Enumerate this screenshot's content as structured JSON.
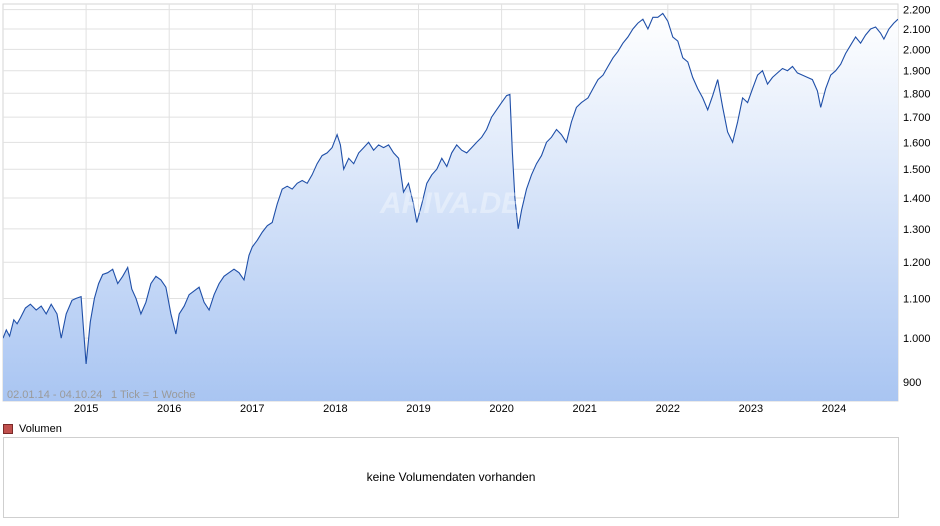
{
  "chart_data": {
    "type": "area",
    "date_range_label": "02.01.14 - 04.10.24",
    "tick_info": "1 Tick = 1 Woche",
    "watermark": "ARIVA.DE",
    "x_tick_labels": [
      "2015",
      "2016",
      "2017",
      "2018",
      "2019",
      "2020",
      "2021",
      "2022",
      "2023",
      "2024"
    ],
    "y_tick_labels": [
      "900",
      "1.000",
      "1.100",
      "1.200",
      "1.300",
      "1.400",
      "1.500",
      "1.600",
      "1.700",
      "1.800",
      "1.900",
      "2.000",
      "2.100",
      "2.200"
    ],
    "y_ticks": [
      900,
      1000,
      1100,
      1200,
      1300,
      1400,
      1500,
      1600,
      1700,
      1800,
      1900,
      2000,
      2100,
      2200
    ],
    "ylim": [
      860,
      2230
    ],
    "xlim": [
      2014.0,
      2024.77
    ],
    "grid": true,
    "y_scale": "log",
    "line_color": "#1f4fa8",
    "fill_top_color": "#ffffff",
    "fill_bottom_color": "#a9c5f2",
    "points": [
      [
        2014.0,
        1000
      ],
      [
        2014.04,
        1020
      ],
      [
        2014.08,
        1005
      ],
      [
        2014.13,
        1045
      ],
      [
        2014.17,
        1035
      ],
      [
        2014.21,
        1050
      ],
      [
        2014.27,
        1075
      ],
      [
        2014.33,
        1085
      ],
      [
        2014.4,
        1070
      ],
      [
        2014.46,
        1080
      ],
      [
        2014.52,
        1060
      ],
      [
        2014.58,
        1085
      ],
      [
        2014.65,
        1060
      ],
      [
        2014.7,
        1000
      ],
      [
        2014.76,
        1060
      ],
      [
        2014.83,
        1095
      ],
      [
        2014.88,
        1100
      ],
      [
        2014.94,
        1105
      ],
      [
        2015.0,
        940
      ],
      [
        2015.05,
        1040
      ],
      [
        2015.1,
        1100
      ],
      [
        2015.15,
        1140
      ],
      [
        2015.2,
        1165
      ],
      [
        2015.26,
        1170
      ],
      [
        2015.32,
        1180
      ],
      [
        2015.38,
        1140
      ],
      [
        2015.44,
        1160
      ],
      [
        2015.5,
        1185
      ],
      [
        2015.55,
        1125
      ],
      [
        2015.6,
        1100
      ],
      [
        2015.66,
        1060
      ],
      [
        2015.72,
        1090
      ],
      [
        2015.78,
        1140
      ],
      [
        2015.84,
        1160
      ],
      [
        2015.9,
        1150
      ],
      [
        2015.96,
        1130
      ],
      [
        2016.02,
        1060
      ],
      [
        2016.08,
        1010
      ],
      [
        2016.12,
        1060
      ],
      [
        2016.18,
        1080
      ],
      [
        2016.24,
        1110
      ],
      [
        2016.3,
        1120
      ],
      [
        2016.36,
        1130
      ],
      [
        2016.42,
        1090
      ],
      [
        2016.48,
        1070
      ],
      [
        2016.54,
        1110
      ],
      [
        2016.6,
        1140
      ],
      [
        2016.66,
        1160
      ],
      [
        2016.72,
        1170
      ],
      [
        2016.78,
        1180
      ],
      [
        2016.84,
        1170
      ],
      [
        2016.9,
        1150
      ],
      [
        2016.96,
        1220
      ],
      [
        2017.0,
        1245
      ],
      [
        2017.06,
        1265
      ],
      [
        2017.12,
        1290
      ],
      [
        2017.18,
        1310
      ],
      [
        2017.24,
        1320
      ],
      [
        2017.3,
        1380
      ],
      [
        2017.36,
        1430
      ],
      [
        2017.42,
        1440
      ],
      [
        2017.48,
        1430
      ],
      [
        2017.54,
        1450
      ],
      [
        2017.6,
        1460
      ],
      [
        2017.66,
        1450
      ],
      [
        2017.72,
        1480
      ],
      [
        2017.78,
        1520
      ],
      [
        2017.84,
        1550
      ],
      [
        2017.9,
        1560
      ],
      [
        2017.96,
        1580
      ],
      [
        2018.02,
        1630
      ],
      [
        2018.06,
        1590
      ],
      [
        2018.1,
        1500
      ],
      [
        2018.16,
        1540
      ],
      [
        2018.22,
        1520
      ],
      [
        2018.28,
        1560
      ],
      [
        2018.34,
        1580
      ],
      [
        2018.4,
        1600
      ],
      [
        2018.46,
        1570
      ],
      [
        2018.52,
        1590
      ],
      [
        2018.58,
        1580
      ],
      [
        2018.64,
        1590
      ],
      [
        2018.7,
        1560
      ],
      [
        2018.76,
        1540
      ],
      [
        2018.82,
        1420
      ],
      [
        2018.88,
        1450
      ],
      [
        2018.94,
        1380
      ],
      [
        2018.98,
        1320
      ],
      [
        2019.04,
        1380
      ],
      [
        2019.1,
        1450
      ],
      [
        2019.16,
        1480
      ],
      [
        2019.22,
        1500
      ],
      [
        2019.28,
        1540
      ],
      [
        2019.34,
        1510
      ],
      [
        2019.4,
        1560
      ],
      [
        2019.46,
        1590
      ],
      [
        2019.52,
        1570
      ],
      [
        2019.58,
        1560
      ],
      [
        2019.64,
        1580
      ],
      [
        2019.7,
        1600
      ],
      [
        2019.76,
        1620
      ],
      [
        2019.82,
        1650
      ],
      [
        2019.88,
        1700
      ],
      [
        2019.94,
        1730
      ],
      [
        2020.0,
        1760
      ],
      [
        2020.06,
        1790
      ],
      [
        2020.1,
        1795
      ],
      [
        2020.13,
        1560
      ],
      [
        2020.16,
        1400
      ],
      [
        2020.2,
        1300
      ],
      [
        2020.24,
        1360
      ],
      [
        2020.3,
        1430
      ],
      [
        2020.36,
        1480
      ],
      [
        2020.42,
        1520
      ],
      [
        2020.48,
        1550
      ],
      [
        2020.54,
        1600
      ],
      [
        2020.6,
        1620
      ],
      [
        2020.66,
        1650
      ],
      [
        2020.72,
        1630
      ],
      [
        2020.78,
        1600
      ],
      [
        2020.84,
        1680
      ],
      [
        2020.9,
        1740
      ],
      [
        2020.96,
        1760
      ],
      [
        2021.04,
        1780
      ],
      [
        2021.1,
        1820
      ],
      [
        2021.16,
        1860
      ],
      [
        2021.22,
        1880
      ],
      [
        2021.28,
        1920
      ],
      [
        2021.34,
        1960
      ],
      [
        2021.4,
        1990
      ],
      [
        2021.46,
        2030
      ],
      [
        2021.52,
        2060
      ],
      [
        2021.58,
        2100
      ],
      [
        2021.64,
        2130
      ],
      [
        2021.7,
        2150
      ],
      [
        2021.76,
        2100
      ],
      [
        2021.82,
        2160
      ],
      [
        2021.88,
        2160
      ],
      [
        2021.94,
        2180
      ],
      [
        2022.0,
        2140
      ],
      [
        2022.06,
        2060
      ],
      [
        2022.12,
        2040
      ],
      [
        2022.18,
        1960
      ],
      [
        2022.24,
        1940
      ],
      [
        2022.3,
        1870
      ],
      [
        2022.36,
        1820
      ],
      [
        2022.42,
        1780
      ],
      [
        2022.48,
        1730
      ],
      [
        2022.54,
        1790
      ],
      [
        2022.6,
        1860
      ],
      [
        2022.66,
        1740
      ],
      [
        2022.72,
        1640
      ],
      [
        2022.78,
        1600
      ],
      [
        2022.84,
        1680
      ],
      [
        2022.9,
        1780
      ],
      [
        2022.96,
        1760
      ],
      [
        2023.02,
        1820
      ],
      [
        2023.08,
        1880
      ],
      [
        2023.14,
        1900
      ],
      [
        2023.2,
        1840
      ],
      [
        2023.26,
        1870
      ],
      [
        2023.32,
        1890
      ],
      [
        2023.38,
        1910
      ],
      [
        2023.44,
        1900
      ],
      [
        2023.5,
        1920
      ],
      [
        2023.56,
        1890
      ],
      [
        2023.62,
        1880
      ],
      [
        2023.68,
        1870
      ],
      [
        2023.74,
        1860
      ],
      [
        2023.8,
        1810
      ],
      [
        2023.84,
        1740
      ],
      [
        2023.9,
        1820
      ],
      [
        2023.96,
        1880
      ],
      [
        2024.02,
        1900
      ],
      [
        2024.08,
        1930
      ],
      [
        2024.14,
        1980
      ],
      [
        2024.2,
        2020
      ],
      [
        2024.26,
        2060
      ],
      [
        2024.32,
        2030
      ],
      [
        2024.38,
        2070
      ],
      [
        2024.44,
        2100
      ],
      [
        2024.5,
        2110
      ],
      [
        2024.56,
        2080
      ],
      [
        2024.6,
        2050
      ],
      [
        2024.66,
        2100
      ],
      [
        2024.72,
        2130
      ],
      [
        2024.77,
        2150
      ]
    ]
  },
  "volume": {
    "label": "Volumen",
    "legend_color": "#c0504d",
    "empty_message": "keine Volumendaten vorhanden"
  }
}
